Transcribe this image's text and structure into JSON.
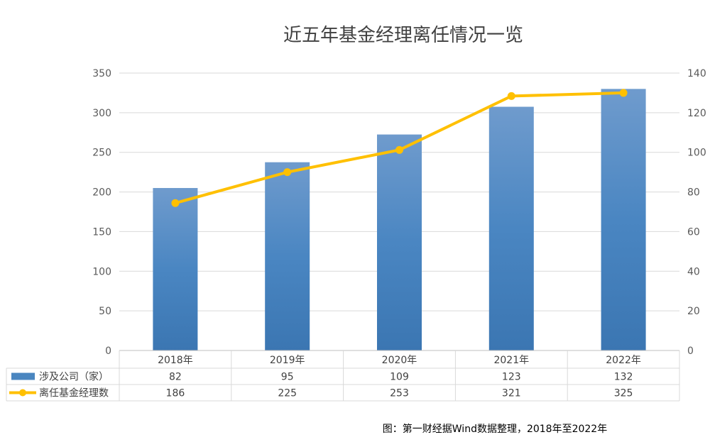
{
  "chart_data": {
    "type": "bar",
    "title": "近五年基金经理离任情况一览",
    "categories": [
      "2018年",
      "2019年",
      "2020年",
      "2021年",
      "2022年"
    ],
    "series": [
      {
        "name": "涉及公司（家）",
        "type": "bar",
        "axis": "right",
        "values": [
          82,
          95,
          109,
          123,
          132
        ],
        "color": "#4a86c0"
      },
      {
        "name": "离任基金经理数",
        "type": "line",
        "axis": "left",
        "values": [
          186,
          225,
          253,
          321,
          325
        ],
        "color": "#ffc000"
      }
    ],
    "y_left": {
      "ylim": [
        0,
        350
      ],
      "ticks": [
        "0",
        "50",
        "100",
        "150",
        "200",
        "250",
        "300",
        "350"
      ]
    },
    "y_right": {
      "ylim": [
        0,
        140
      ],
      "ticks": [
        "0",
        "20",
        "40",
        "60",
        "80",
        "100",
        "120",
        "140"
      ]
    },
    "grid": true,
    "legend": "data-table",
    "caption": "图：第一财经据Wind数据整理，2018年至2022年"
  }
}
